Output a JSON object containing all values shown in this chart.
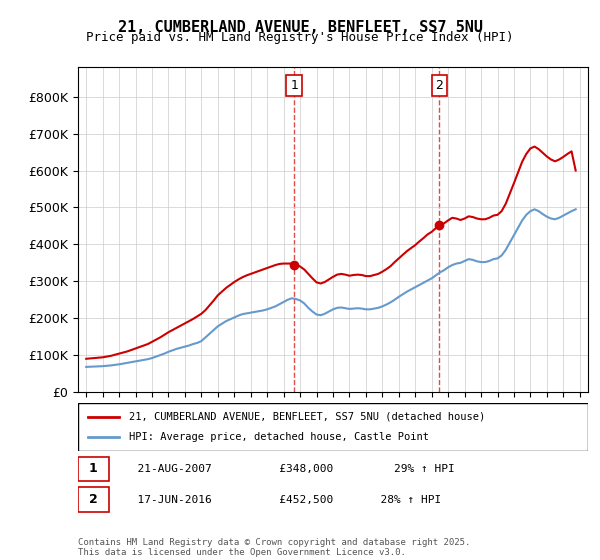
{
  "title": "21, CUMBERLAND AVENUE, BENFLEET, SS7 5NU",
  "subtitle": "Price paid vs. HM Land Registry's House Price Index (HPI)",
  "legend_line1": "21, CUMBERLAND AVENUE, BENFLEET, SS7 5NU (detached house)",
  "legend_line2": "HPI: Average price, detached house, Castle Point",
  "footer": "Contains HM Land Registry data © Crown copyright and database right 2025.\nThis data is licensed under the Open Government Licence v3.0.",
  "sale1_date": "21-AUG-2007",
  "sale1_price": 348000,
  "sale1_label": "29% ↑ HPI",
  "sale2_date": "17-JUN-2016",
  "sale2_price": 452500,
  "sale2_label": "28% ↑ HPI",
  "sale1_x": 2007.64,
  "sale2_x": 2016.46,
  "red_color": "#cc0000",
  "blue_color": "#6699cc",
  "ylim": [
    0,
    880000
  ],
  "xlim": [
    1994.5,
    2025.5
  ],
  "yticks": [
    0,
    100000,
    200000,
    300000,
    400000,
    500000,
    600000,
    700000,
    800000
  ],
  "ytick_labels": [
    "£0",
    "£100K",
    "£200K",
    "£300K",
    "£400K",
    "£500K",
    "£600K",
    "£700K",
    "£800K"
  ],
  "xticks": [
    1995,
    1996,
    1997,
    1998,
    1999,
    2000,
    2001,
    2002,
    2003,
    2004,
    2005,
    2006,
    2007,
    2008,
    2009,
    2010,
    2011,
    2012,
    2013,
    2014,
    2015,
    2016,
    2017,
    2018,
    2019,
    2020,
    2021,
    2022,
    2023,
    2024,
    2025
  ],
  "hpi_years": [
    1995.0,
    1995.25,
    1995.5,
    1995.75,
    1996.0,
    1996.25,
    1996.5,
    1996.75,
    1997.0,
    1997.25,
    1997.5,
    1997.75,
    1998.0,
    1998.25,
    1998.5,
    1998.75,
    1999.0,
    1999.25,
    1999.5,
    1999.75,
    2000.0,
    2000.25,
    2000.5,
    2000.75,
    2001.0,
    2001.25,
    2001.5,
    2001.75,
    2002.0,
    2002.25,
    2002.5,
    2002.75,
    2003.0,
    2003.25,
    2003.5,
    2003.75,
    2004.0,
    2004.25,
    2004.5,
    2004.75,
    2005.0,
    2005.25,
    2005.5,
    2005.75,
    2006.0,
    2006.25,
    2006.5,
    2006.75,
    2007.0,
    2007.25,
    2007.5,
    2007.75,
    2008.0,
    2008.25,
    2008.5,
    2008.75,
    2009.0,
    2009.25,
    2009.5,
    2009.75,
    2010.0,
    2010.25,
    2010.5,
    2010.75,
    2011.0,
    2011.25,
    2011.5,
    2011.75,
    2012.0,
    2012.25,
    2012.5,
    2012.75,
    2013.0,
    2013.25,
    2013.5,
    2013.75,
    2014.0,
    2014.25,
    2014.5,
    2014.75,
    2015.0,
    2015.25,
    2015.5,
    2015.75,
    2016.0,
    2016.25,
    2016.5,
    2016.75,
    2017.0,
    2017.25,
    2017.5,
    2017.75,
    2018.0,
    2018.25,
    2018.5,
    2018.75,
    2019.0,
    2019.25,
    2019.5,
    2019.75,
    2020.0,
    2020.25,
    2020.5,
    2020.75,
    2021.0,
    2021.25,
    2021.5,
    2021.75,
    2022.0,
    2022.25,
    2022.5,
    2022.75,
    2023.0,
    2023.25,
    2023.5,
    2023.75,
    2024.0,
    2024.25,
    2024.5,
    2024.75
  ],
  "hpi_values": [
    68000,
    68500,
    69000,
    69500,
    70000,
    71000,
    72000,
    73500,
    75000,
    77000,
    79000,
    81000,
    83000,
    85000,
    87000,
    89000,
    92000,
    96000,
    100000,
    104000,
    109000,
    113000,
    117000,
    120000,
    123000,
    126000,
    130000,
    133000,
    138000,
    148000,
    158000,
    168000,
    178000,
    185000,
    192000,
    197000,
    202000,
    207000,
    211000,
    213000,
    215000,
    217000,
    219000,
    221000,
    224000,
    228000,
    232000,
    238000,
    244000,
    250000,
    254000,
    252000,
    248000,
    240000,
    228000,
    218000,
    210000,
    208000,
    212000,
    218000,
    224000,
    228000,
    229000,
    227000,
    225000,
    226000,
    227000,
    226000,
    224000,
    224000,
    226000,
    228000,
    232000,
    237000,
    243000,
    250000,
    258000,
    265000,
    272000,
    278000,
    284000,
    290000,
    296000,
    302000,
    308000,
    316000,
    324000,
    330000,
    338000,
    344000,
    348000,
    350000,
    355000,
    360000,
    358000,
    354000,
    352000,
    352000,
    355000,
    360000,
    362000,
    370000,
    385000,
    405000,
    425000,
    445000,
    465000,
    480000,
    490000,
    495000,
    490000,
    482000,
    475000,
    470000,
    468000,
    472000,
    478000,
    484000,
    490000,
    495000
  ],
  "red_years": [
    1995.0,
    1995.25,
    1995.5,
    1995.75,
    1996.0,
    1996.25,
    1996.5,
    1996.75,
    1997.0,
    1997.25,
    1997.5,
    1997.75,
    1998.0,
    1998.25,
    1998.5,
    1998.75,
    1999.0,
    1999.25,
    1999.5,
    1999.75,
    2000.0,
    2000.25,
    2000.5,
    2000.75,
    2001.0,
    2001.25,
    2001.5,
    2001.75,
    2002.0,
    2002.25,
    2002.5,
    2002.75,
    2003.0,
    2003.25,
    2003.5,
    2003.75,
    2004.0,
    2004.25,
    2004.5,
    2004.75,
    2005.0,
    2005.25,
    2005.5,
    2005.75,
    2006.0,
    2006.25,
    2006.5,
    2006.75,
    2007.0,
    2007.25,
    2007.5,
    2007.75,
    2008.0,
    2008.25,
    2008.5,
    2008.75,
    2009.0,
    2009.25,
    2009.5,
    2009.75,
    2010.0,
    2010.25,
    2010.5,
    2010.75,
    2011.0,
    2011.25,
    2011.5,
    2011.75,
    2012.0,
    2012.25,
    2012.5,
    2012.75,
    2013.0,
    2013.25,
    2013.5,
    2013.75,
    2014.0,
    2014.25,
    2014.5,
    2014.75,
    2015.0,
    2015.25,
    2015.5,
    2015.75,
    2016.0,
    2016.25,
    2016.5,
    2016.75,
    2017.0,
    2017.25,
    2017.5,
    2017.75,
    2018.0,
    2018.25,
    2018.5,
    2018.75,
    2019.0,
    2019.25,
    2019.5,
    2019.75,
    2020.0,
    2020.25,
    2020.5,
    2020.75,
    2021.0,
    2021.25,
    2021.5,
    2021.75,
    2022.0,
    2022.25,
    2022.5,
    2022.75,
    2023.0,
    2023.25,
    2023.5,
    2023.75,
    2024.0,
    2024.25,
    2024.5,
    2024.75
  ],
  "red_values": [
    90000,
    91000,
    92000,
    93000,
    94000,
    96000,
    98000,
    101000,
    104000,
    107000,
    110000,
    114000,
    118000,
    122000,
    126000,
    130000,
    136000,
    142000,
    148000,
    155000,
    162000,
    168000,
    174000,
    180000,
    186000,
    192000,
    198000,
    205000,
    212000,
    222000,
    235000,
    248000,
    262000,
    272000,
    282000,
    290000,
    298000,
    305000,
    311000,
    316000,
    320000,
    324000,
    328000,
    332000,
    336000,
    340000,
    344000,
    347000,
    348000,
    348000,
    348000,
    345000,
    340000,
    332000,
    320000,
    308000,
    297000,
    294000,
    298000,
    305000,
    312000,
    318000,
    320000,
    318000,
    315000,
    317000,
    318000,
    317000,
    314000,
    314000,
    317000,
    320000,
    326000,
    333000,
    341000,
    352000,
    362000,
    372000,
    382000,
    390000,
    398000,
    408000,
    417000,
    427000,
    434000,
    444000,
    452000,
    457000,
    465000,
    472000,
    470000,
    466000,
    470000,
    476000,
    474000,
    470000,
    468000,
    468000,
    472000,
    478000,
    480000,
    490000,
    510000,
    538000,
    566000,
    595000,
    624000,
    645000,
    660000,
    665000,
    658000,
    648000,
    638000,
    630000,
    625000,
    630000,
    637000,
    645000,
    652000,
    600000
  ]
}
